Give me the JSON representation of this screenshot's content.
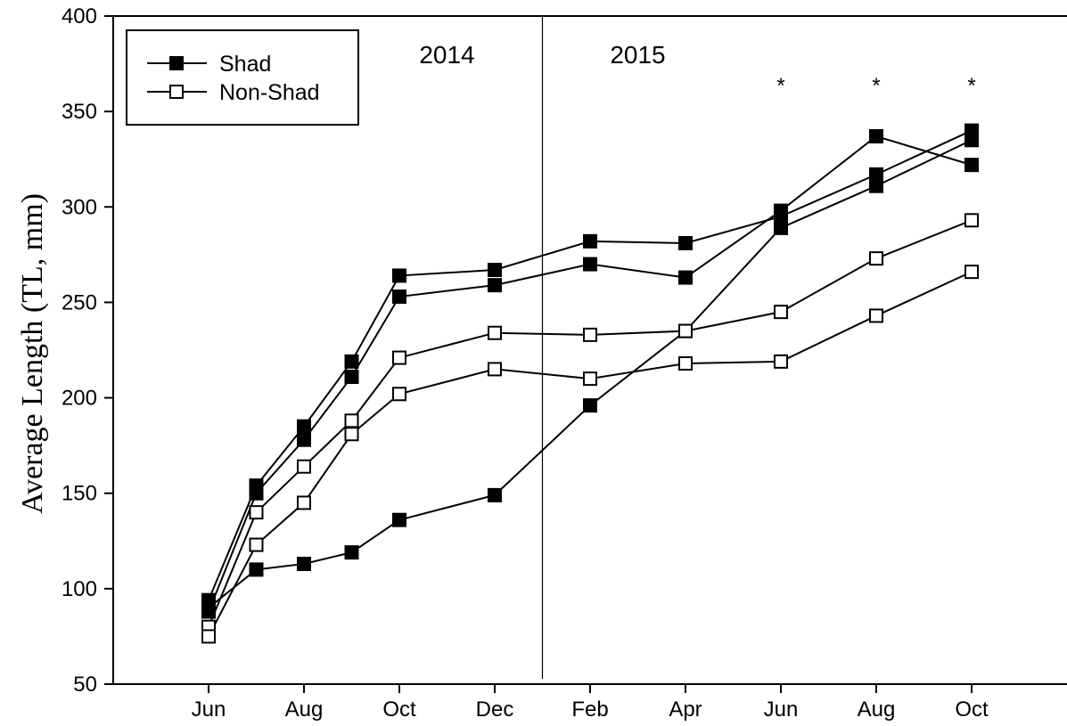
{
  "chart_data": {
    "type": "line",
    "title": "",
    "xlabel": "",
    "ylabel": "Average Length (TL, mm)",
    "ylim": [
      50,
      400
    ],
    "yticks": [
      50,
      100,
      150,
      200,
      250,
      300,
      350,
      400
    ],
    "xticks": [
      {
        "x": 0,
        "label": "Jun"
      },
      {
        "x": 2,
        "label": "Aug"
      },
      {
        "x": 4,
        "label": "Oct"
      },
      {
        "x": 6,
        "label": "Dec"
      },
      {
        "x": 8,
        "label": "Feb"
      },
      {
        "x": 10,
        "label": "Apr"
      },
      {
        "x": 12,
        "label": "Jun"
      },
      {
        "x": 14,
        "label": "Aug"
      },
      {
        "x": 16,
        "label": "Oct"
      }
    ],
    "xlim": [
      -2,
      18
    ],
    "divider_x": 7,
    "year_labels": [
      {
        "text": "2014",
        "x": 5.0,
        "y": 380
      },
      {
        "text": "2015",
        "x": 9.0,
        "y": 380
      }
    ],
    "significance": {
      "symbol": "*",
      "x": [
        12,
        14,
        16
      ]
    },
    "legend": {
      "position": "top-left",
      "entries": [
        {
          "name": "Shad",
          "marker": "filled-square"
        },
        {
          "name": "Non-Shad",
          "marker": "open-square"
        }
      ]
    },
    "series": [
      {
        "group": "Shad",
        "marker": "filled",
        "x": [
          0,
          1,
          2,
          3,
          4,
          6,
          8,
          10,
          12,
          14,
          16
        ],
        "y": [
          94,
          154,
          185,
          219,
          264,
          267,
          282,
          281,
          295,
          317,
          340
        ]
      },
      {
        "group": "Shad",
        "marker": "filled",
        "x": [
          0,
          1,
          2,
          3,
          4,
          6,
          8,
          10,
          12,
          14,
          16
        ],
        "y": [
          88,
          150,
          178,
          211,
          253,
          259,
          270,
          263,
          298,
          337,
          322
        ]
      },
      {
        "group": "Shad",
        "marker": "filled",
        "x": [
          0,
          1,
          2,
          3,
          4,
          6,
          8,
          10,
          12,
          14,
          16
        ],
        "y": [
          90,
          110,
          113,
          119,
          136,
          149,
          196,
          235,
          289,
          311,
          335
        ]
      },
      {
        "group": "Non-Shad",
        "marker": "open",
        "x": [
          0,
          1,
          2,
          3,
          4,
          6,
          8,
          10,
          12,
          14,
          16
        ],
        "y": [
          80,
          140,
          164,
          188,
          221,
          234,
          233,
          235,
          245,
          273,
          293
        ]
      },
      {
        "group": "Non-Shad",
        "marker": "open",
        "x": [
          0,
          1,
          2,
          3,
          4,
          6,
          8,
          10,
          12,
          14,
          16
        ],
        "y": [
          75,
          123,
          145,
          181,
          202,
          215,
          210,
          218,
          219,
          243,
          266
        ]
      }
    ]
  }
}
